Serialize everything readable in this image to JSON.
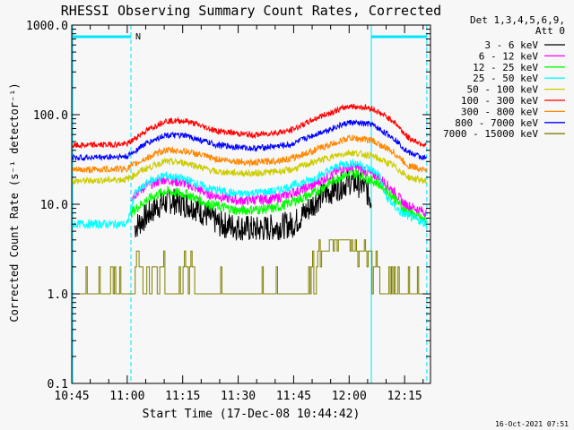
{
  "chart_data": {
    "type": "line",
    "title": "RHESSI Observing Summary Count Rates, Corrected",
    "xlabel": "Start Time (17-Dec-08 10:44:42)",
    "ylabel": "Corrected Count Rate (s⁻¹ detector⁻¹)",
    "y_scale": "log",
    "ylim": [
      0.1,
      1000.0
    ],
    "y_ticks": [
      {
        "value": 1000.0,
        "label": "1000.0"
      },
      {
        "value": 100.0,
        "label": "100.0"
      },
      {
        "value": 10.0,
        "label": "10.0"
      },
      {
        "value": 1.0,
        "label": "1.0"
      },
      {
        "value": 0.1,
        "label": "0.1"
      }
    ],
    "xlim": [
      "10:45",
      "12:22"
    ],
    "x_ticks": [
      "10:45",
      "11:00",
      "11:15",
      "11:30",
      "11:45",
      "12:00",
      "12:15"
    ],
    "legend_header": [
      "Det 1,3,4,5,6,9,",
      "Att 0"
    ],
    "legend_position": "right",
    "flag_label": "N",
    "flag_intervals": [
      [
        "10:45",
        "11:01"
      ],
      [
        "12:06",
        "12:21"
      ]
    ],
    "markers": [
      {
        "time": "11:01",
        "style": "dashed"
      },
      {
        "time": "12:06",
        "style": "solid"
      },
      {
        "time": "12:21",
        "style": "dashed"
      }
    ],
    "series": [
      {
        "name": "3 - 6 keV",
        "color": "#000000",
        "noise": 0.16,
        "points": [
          [
            "11:02",
            5.5
          ],
          [
            "11:08",
            9.5
          ],
          [
            "11:12",
            11.0
          ],
          [
            "11:18",
            9.5
          ],
          [
            "11:25",
            6.0
          ],
          [
            "11:35",
            5.2
          ],
          [
            "11:45",
            6.0
          ],
          [
            "11:52",
            12.0
          ],
          [
            "12:00",
            18.0
          ],
          [
            "12:04",
            16.0
          ],
          [
            "12:06",
            11.0
          ]
        ]
      },
      {
        "name": "6 - 12 keV",
        "color": "#ff00ff",
        "noise": 0.06,
        "points": [
          [
            "11:01",
            12.0
          ],
          [
            "11:05",
            16.0
          ],
          [
            "11:10",
            19.0
          ],
          [
            "11:16",
            17.0
          ],
          [
            "11:22",
            13.0
          ],
          [
            "11:30",
            11.0
          ],
          [
            "11:40",
            11.5
          ],
          [
            "11:50",
            16.0
          ],
          [
            "11:58",
            25.0
          ],
          [
            "12:02",
            26.0
          ],
          [
            "12:08",
            20.0
          ],
          [
            "12:12",
            14.0
          ],
          [
            "12:15",
            10.0
          ],
          [
            "12:21",
            8.0
          ]
        ]
      },
      {
        "name": "12 - 25 keV",
        "color": "#00ff00",
        "noise": 0.06,
        "points": [
          [
            "11:01",
            8.0
          ],
          [
            "11:05",
            11.0
          ],
          [
            "11:10",
            14.0
          ],
          [
            "11:16",
            13.0
          ],
          [
            "11:22",
            10.0
          ],
          [
            "11:30",
            8.5
          ],
          [
            "11:40",
            9.0
          ],
          [
            "11:50",
            13.0
          ],
          [
            "11:58",
            21.0
          ],
          [
            "12:02",
            22.0
          ],
          [
            "12:08",
            17.0
          ],
          [
            "12:12",
            12.0
          ],
          [
            "12:15",
            8.5
          ],
          [
            "12:21",
            6.5
          ]
        ]
      },
      {
        "name": "25 - 50 keV",
        "color": "#00ffff",
        "noise": 0.05,
        "points": [
          [
            "10:45",
            6.0
          ],
          [
            "11:00",
            6.0
          ],
          [
            "11:02",
            13.0
          ],
          [
            "11:06",
            18.0
          ],
          [
            "11:10",
            21.0
          ],
          [
            "11:16",
            19.0
          ],
          [
            "11:22",
            15.0
          ],
          [
            "11:30",
            13.0
          ],
          [
            "11:40",
            14.0
          ],
          [
            "11:50",
            19.0
          ],
          [
            "11:58",
            28.0
          ],
          [
            "12:02",
            29.0
          ],
          [
            "12:08",
            22.0
          ],
          [
            "12:10",
            12.0
          ],
          [
            "12:14",
            8.0
          ],
          [
            "12:21",
            6.0
          ]
        ]
      },
      {
        "name": "50 - 100 keV",
        "color": "#cccc00",
        "noise": 0.04,
        "points": [
          [
            "10:45",
            18.0
          ],
          [
            "11:00",
            19.0
          ],
          [
            "11:04",
            24.0
          ],
          [
            "11:10",
            30.0
          ],
          [
            "11:16",
            29.0
          ],
          [
            "11:24",
            23.0
          ],
          [
            "11:34",
            22.0
          ],
          [
            "11:44",
            24.0
          ],
          [
            "11:52",
            31.0
          ],
          [
            "12:00",
            38.0
          ],
          [
            "12:06",
            35.0
          ],
          [
            "12:12",
            27.0
          ],
          [
            "12:16",
            20.0
          ],
          [
            "12:21",
            18.0
          ]
        ]
      },
      {
        "name": "100 - 300 keV",
        "color": "#ff0000",
        "noise": 0.035,
        "points": [
          [
            "10:45",
            45.0
          ],
          [
            "11:00",
            47.0
          ],
          [
            "11:04",
            62.0
          ],
          [
            "11:10",
            85.0
          ],
          [
            "11:16",
            85.0
          ],
          [
            "11:24",
            66.0
          ],
          [
            "11:34",
            59.0
          ],
          [
            "11:44",
            66.0
          ],
          [
            "11:52",
            95.0
          ],
          [
            "12:00",
            125.0
          ],
          [
            "12:06",
            118.0
          ],
          [
            "12:12",
            85.0
          ],
          [
            "12:16",
            55.0
          ],
          [
            "12:21",
            45.0
          ]
        ]
      },
      {
        "name": "300 - 800 keV",
        "color": "#ff8800",
        "noise": 0.04,
        "points": [
          [
            "10:45",
            24.0
          ],
          [
            "11:00",
            25.0
          ],
          [
            "11:04",
            31.0
          ],
          [
            "11:10",
            40.0
          ],
          [
            "11:16",
            39.0
          ],
          [
            "11:24",
            32.0
          ],
          [
            "11:34",
            29.0
          ],
          [
            "11:44",
            32.0
          ],
          [
            "11:52",
            42.0
          ],
          [
            "12:00",
            55.0
          ],
          [
            "12:06",
            52.0
          ],
          [
            "12:12",
            38.0
          ],
          [
            "12:16",
            27.0
          ],
          [
            "12:21",
            24.0
          ]
        ]
      },
      {
        "name": "800 - 7000 keV",
        "color": "#0000ff",
        "noise": 0.035,
        "points": [
          [
            "10:45",
            33.0
          ],
          [
            "11:00",
            34.0
          ],
          [
            "11:04",
            45.0
          ],
          [
            "11:10",
            59.0
          ],
          [
            "11:16",
            58.0
          ],
          [
            "11:24",
            46.0
          ],
          [
            "11:34",
            42.0
          ],
          [
            "11:44",
            46.0
          ],
          [
            "11:52",
            63.0
          ],
          [
            "12:00",
            82.0
          ],
          [
            "12:06",
            78.0
          ],
          [
            "12:12",
            55.0
          ],
          [
            "12:16",
            38.0
          ],
          [
            "12:21",
            32.0
          ]
        ]
      },
      {
        "name": "7000 - 15000 keV",
        "color": "#808000",
        "step": true,
        "levels": [
          1.0,
          2.0,
          3.0,
          4.0
        ],
        "points": [
          [
            "10:45",
            1.0
          ],
          [
            "11:01",
            1.0
          ],
          [
            "11:02",
            2.0
          ],
          [
            "11:06",
            1.0
          ],
          [
            "11:08",
            2.0
          ],
          [
            "11:12",
            1.0
          ],
          [
            "11:16",
            2.0
          ],
          [
            "11:20",
            1.0
          ],
          [
            "11:25",
            1.0
          ],
          [
            "11:48",
            1.0
          ],
          [
            "11:50",
            2.0
          ],
          [
            "11:53",
            3.0
          ],
          [
            "11:56",
            4.0
          ],
          [
            "12:04",
            3.0
          ],
          [
            "12:07",
            2.0
          ],
          [
            "12:09",
            1.0
          ],
          [
            "12:21",
            1.0
          ]
        ]
      }
    ]
  },
  "timestamp": "16-Oct-2021 07:51"
}
